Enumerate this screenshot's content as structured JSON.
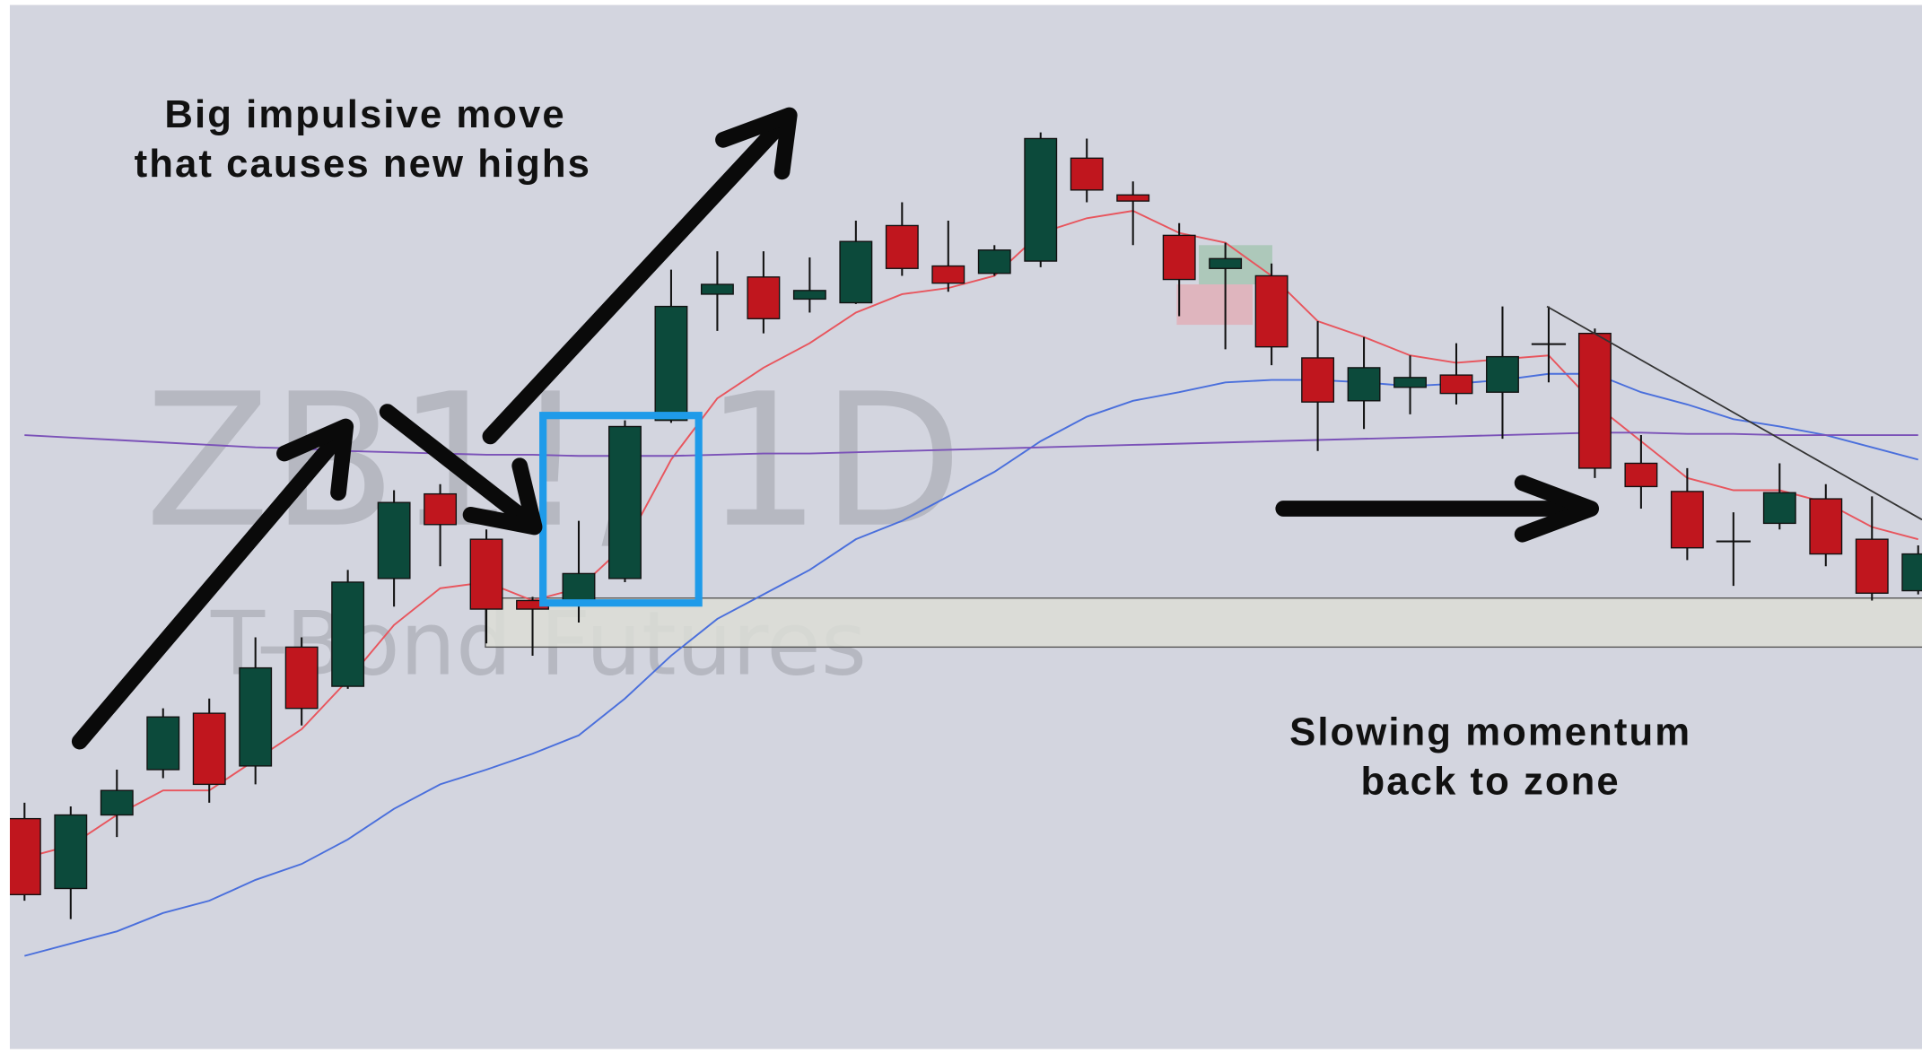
{
  "chart_data": {
    "type": "candlestick",
    "watermark_title": "ZB1!, 1D",
    "watermark_subtitle": "T-Bond Futures",
    "annotations": [
      {
        "lines": [
          "Big impulsive move",
          "that causes new highs"
        ]
      },
      {
        "lines": [
          "Slowing momentum",
          "back to zone"
        ]
      }
    ],
    "ylim": [
      0,
      860
    ],
    "up_color": "#0c4a3b",
    "down_color": "#c0161e",
    "doji_color": "#111111",
    "open": [
      192,
      135,
      195,
      232,
      278,
      235,
      332,
      300,
      388,
      457,
      420,
      370,
      368,
      388,
      517,
      620,
      634,
      616,
      613,
      676,
      643,
      637,
      647,
      731,
      701,
      668,
      641,
      635,
      568,
      533,
      544,
      554,
      540,
      580,
      588,
      482,
      459,
      419,
      433,
      453,
      420,
      378
    ],
    "high": [
      205,
      202,
      232,
      282,
      290,
      340,
      340,
      395,
      460,
      465,
      428,
      373,
      435,
      517,
      640,
      655,
      655,
      650,
      680,
      695,
      680,
      660,
      752,
      747,
      712,
      678,
      662,
      645,
      598,
      585,
      570,
      580,
      610,
      610,
      592,
      505,
      478,
      442,
      482,
      465,
      455,
      415
    ],
    "low": [
      125,
      110,
      177,
      225,
      205,
      220,
      268,
      298,
      365,
      398,
      335,
      325,
      352,
      385,
      515,
      590,
      588,
      605,
      612,
      635,
      622,
      635,
      642,
      695,
      660,
      602,
      575,
      562,
      492,
      510,
      522,
      530,
      502,
      548,
      470,
      445,
      403,
      382,
      428,
      398,
      370,
      375
    ],
    "close": [
      130,
      195,
      215,
      275,
      220,
      315,
      282,
      385,
      450,
      432,
      363,
      363,
      392,
      512,
      610,
      628,
      600,
      623,
      663,
      641,
      629,
      656,
      747,
      705,
      696,
      632,
      649,
      577,
      532,
      560,
      552,
      539,
      569,
      579,
      478,
      463,
      413,
      418,
      458,
      408,
      376,
      408
    ],
    "lines": [
      {
        "color": "#e8555d",
        "values": [
          160,
          170,
          195,
          215,
          215,
          240,
          265,
          305,
          350,
          380,
          385,
          370,
          380,
          415,
          485,
          535,
          560,
          580,
          605,
          620,
          625,
          635,
          670,
          682,
          688,
          670,
          662,
          635,
          598,
          585,
          570,
          564,
          567,
          570,
          530,
          500,
          470,
          460,
          460,
          450,
          430,
          420
        ]
      },
      {
        "color": "#4a6fdc",
        "values": [
          80,
          90,
          100,
          115,
          125,
          142,
          155,
          175,
          200,
          220,
          232,
          245,
          260,
          290,
          325,
          355,
          375,
          395,
          420,
          435,
          455,
          475,
          500,
          520,
          533,
          540,
          548,
          550,
          550,
          548,
          545,
          547,
          550,
          555,
          555,
          540,
          530,
          518,
          512,
          505,
          495,
          485
        ]
      },
      {
        "color": "#7b52b8",
        "values": [
          505,
          503,
          501,
          499,
          497,
          495,
          494,
          492,
          491,
          490,
          489,
          489,
          488,
          488,
          488,
          489,
          490,
          490,
          491,
          492,
          493,
          494,
          495,
          496,
          497,
          498,
          499,
          500,
          501,
          502,
          503,
          504,
          505,
          506,
          507,
          507,
          506,
          506,
          505,
          505,
          505,
          505
        ]
      }
    ]
  }
}
